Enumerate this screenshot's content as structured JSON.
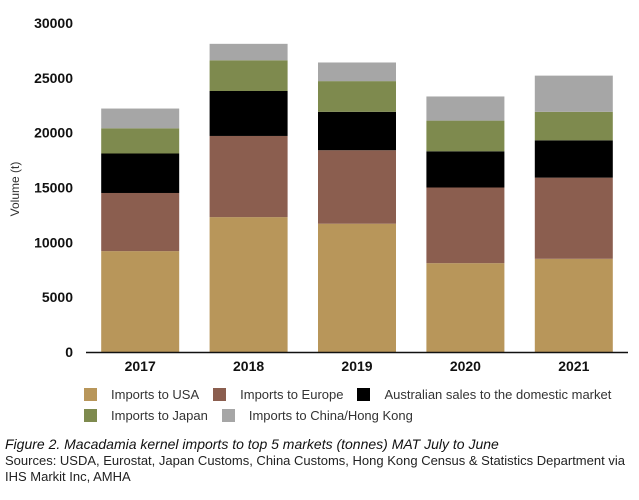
{
  "chart_data": {
    "type": "bar",
    "stacked": true,
    "categories": [
      "2017",
      "2018",
      "2019",
      "2020",
      "2021"
    ],
    "ylabel": "Volume (t)",
    "xlabel": "",
    "ylim": [
      0,
      30000
    ],
    "yticks": [
      0,
      5000,
      10000,
      15000,
      20000,
      25000,
      30000
    ],
    "grid": false,
    "legend_position": "bottom",
    "series": [
      {
        "name": "Imports to USA",
        "color": "#b8965a",
        "values": [
          9200,
          12300,
          11700,
          8100,
          8500
        ]
      },
      {
        "name": "Imports to Europe",
        "color": "#8b5e4f",
        "values": [
          5300,
          7400,
          6700,
          6900,
          7400
        ]
      },
      {
        "name": "Australian sales to the domestic market",
        "color": "#000000",
        "values": [
          3600,
          4100,
          3500,
          3300,
          3400
        ]
      },
      {
        "name": "Imports to Japan",
        "color": "#7e8a4e",
        "values": [
          2300,
          2800,
          2800,
          2800,
          2600
        ]
      },
      {
        "name": "Imports to China/Hong Kong",
        "color": "#a6a6a6",
        "values": [
          1800,
          1500,
          1700,
          2200,
          3300
        ]
      }
    ]
  },
  "caption": {
    "figure_label": "Figure 2.",
    "title": "Macadamia kernel imports to top 5 markets (tonnes) MAT July to June",
    "sources": "Sources: USDA, Eurostat, Japan Customs, China Customs, Hong Kong Census & Statistics Department via IHS Markit Inc, AMHA"
  }
}
